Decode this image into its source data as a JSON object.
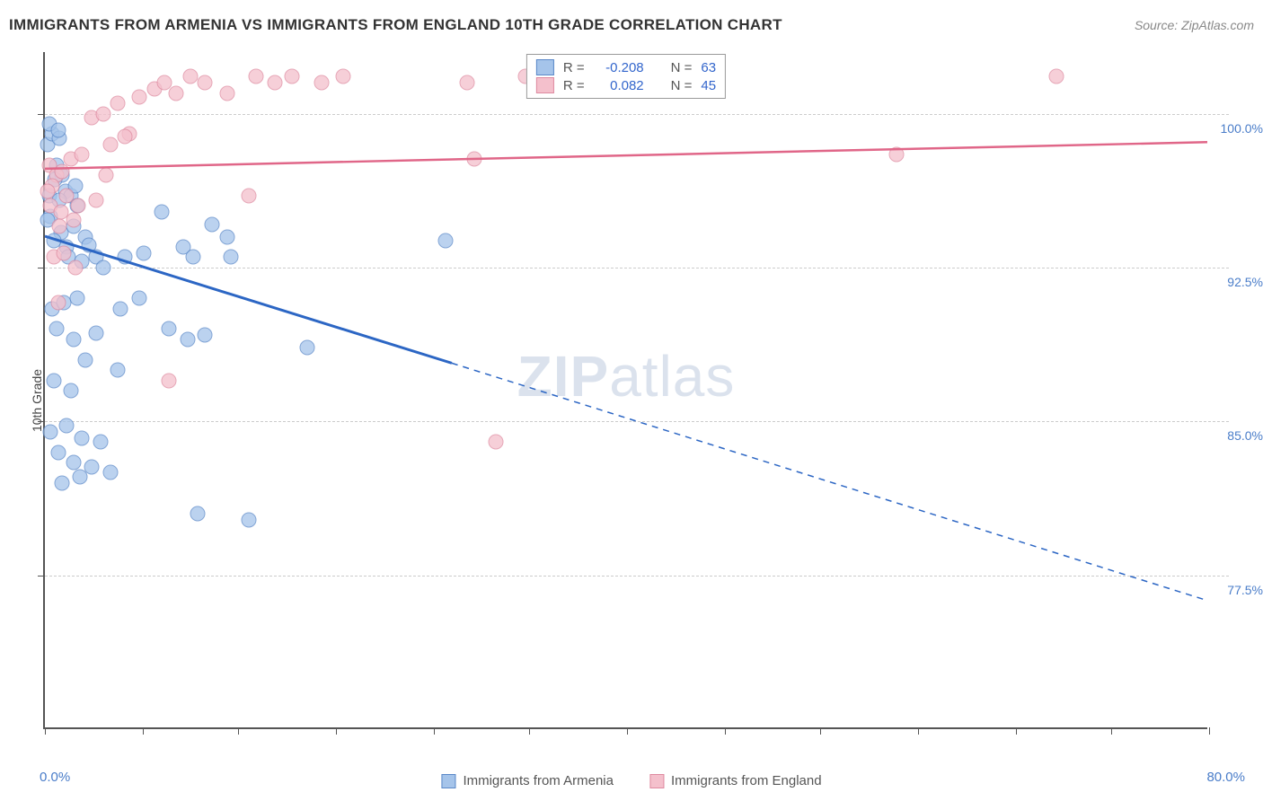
{
  "header": {
    "title": "IMMIGRANTS FROM ARMENIA VS IMMIGRANTS FROM ENGLAND 10TH GRADE CORRELATION CHART",
    "source": "Source: ZipAtlas.com"
  },
  "watermark": {
    "prefix": "ZIP",
    "suffix": "atlas"
  },
  "chart": {
    "type": "scatter",
    "xlim": [
      0,
      80
    ],
    "ylim": [
      70,
      103
    ],
    "x_tick_positions": [
      0,
      6.7,
      13.3,
      20,
      26.7,
      33.3,
      40,
      46.7,
      53.3,
      60,
      66.7,
      73.3,
      80
    ],
    "y_tick_positions": [
      77.5,
      85.0,
      92.5,
      100.0
    ],
    "y_tick_labels": [
      "77.5%",
      "85.0%",
      "92.5%",
      "100.0%"
    ],
    "x_axis_min_label": "0.0%",
    "x_axis_max_label": "80.0%",
    "ylabel": "10th Grade",
    "grid_color": "#cccccc",
    "axis_color": "#555555",
    "background_color": "#ffffff",
    "label_fontsize": 14,
    "tick_label_color": "#4a7dc9",
    "marker_radius": 8.5
  },
  "series": [
    {
      "name": "Immigrants from Armenia",
      "fill_color": "#a5c4ea",
      "stroke_color": "#5a88c8",
      "trend_color": "#2c66c4",
      "trend_width": 3,
      "R": "-0.208",
      "N": "63",
      "trend": {
        "x0": 0,
        "y0": 94.0,
        "x_solid_end": 28,
        "y_solid_end": 87.8,
        "x1": 80,
        "y1": 76.2
      },
      "points": [
        [
          0.2,
          98.5
        ],
        [
          0.5,
          99.0
        ],
        [
          0.8,
          97.5
        ],
        [
          1.0,
          98.8
        ],
        [
          1.2,
          97.0
        ],
        [
          0.3,
          96.0
        ],
        [
          0.7,
          96.8
        ],
        [
          1.4,
          96.2
        ],
        [
          1.8,
          96.0
        ],
        [
          2.2,
          95.5
        ],
        [
          0.4,
          95.0
        ],
        [
          1.1,
          94.2
        ],
        [
          2.0,
          94.5
        ],
        [
          2.8,
          94.0
        ],
        [
          0.6,
          93.8
        ],
        [
          1.5,
          93.5
        ],
        [
          3.0,
          93.6
        ],
        [
          0.3,
          99.5
        ],
        [
          0.9,
          99.2
        ],
        [
          1.6,
          93.0
        ],
        [
          2.5,
          92.8
        ],
        [
          3.5,
          93.0
        ],
        [
          4.0,
          92.5
        ],
        [
          5.5,
          93.0
        ],
        [
          6.8,
          93.2
        ],
        [
          8.0,
          95.2
        ],
        [
          9.5,
          93.5
        ],
        [
          10.2,
          93.0
        ],
        [
          11.5,
          94.6
        ],
        [
          12.5,
          94.0
        ],
        [
          12.8,
          93.0
        ],
        [
          0.5,
          90.5
        ],
        [
          1.3,
          90.8
        ],
        [
          2.2,
          91.0
        ],
        [
          5.2,
          90.5
        ],
        [
          6.5,
          91.0
        ],
        [
          0.8,
          89.5
        ],
        [
          2.0,
          89.0
        ],
        [
          3.5,
          89.3
        ],
        [
          8.5,
          89.5
        ],
        [
          9.8,
          89.0
        ],
        [
          11.0,
          89.2
        ],
        [
          18.0,
          88.6
        ],
        [
          27.5,
          93.8
        ],
        [
          0.6,
          87.0
        ],
        [
          1.8,
          86.5
        ],
        [
          2.8,
          88.0
        ],
        [
          5.0,
          87.5
        ],
        [
          0.4,
          84.5
        ],
        [
          1.5,
          84.8
        ],
        [
          2.5,
          84.2
        ],
        [
          3.8,
          84.0
        ],
        [
          0.9,
          83.5
        ],
        [
          2.0,
          83.0
        ],
        [
          3.2,
          82.8
        ],
        [
          4.5,
          82.5
        ],
        [
          1.2,
          82.0
        ],
        [
          2.4,
          82.3
        ],
        [
          10.5,
          80.5
        ],
        [
          14.0,
          80.2
        ],
        [
          0.2,
          94.8
        ],
        [
          1.0,
          95.8
        ],
        [
          2.1,
          96.5
        ]
      ]
    },
    {
      "name": "Immigrants from England",
      "fill_color": "#f4c0cc",
      "stroke_color": "#de8aa0",
      "trend_color": "#e06688",
      "trend_width": 2.5,
      "R": " 0.082",
      "N": "45",
      "trend": {
        "x0": 0,
        "y0": 97.3,
        "x_solid_end": 80,
        "y_solid_end": 98.6,
        "x1": 80,
        "y1": 98.6
      },
      "points": [
        [
          0.3,
          97.5
        ],
        [
          0.8,
          97.0
        ],
        [
          1.2,
          97.2
        ],
        [
          1.8,
          97.8
        ],
        [
          2.5,
          98.0
        ],
        [
          3.2,
          99.8
        ],
        [
          4.0,
          100.0
        ],
        [
          5.0,
          100.5
        ],
        [
          5.8,
          99.0
        ],
        [
          6.5,
          100.8
        ],
        [
          7.5,
          101.2
        ],
        [
          8.2,
          101.5
        ],
        [
          9.0,
          101.0
        ],
        [
          10.0,
          101.8
        ],
        [
          11.0,
          101.5
        ],
        [
          12.5,
          101.0
        ],
        [
          14.5,
          101.8
        ],
        [
          15.8,
          101.5
        ],
        [
          17.0,
          101.8
        ],
        [
          19.0,
          101.5
        ],
        [
          20.5,
          101.8
        ],
        [
          14.0,
          96.0
        ],
        [
          0.5,
          96.5
        ],
        [
          1.5,
          96.0
        ],
        [
          2.3,
          95.5
        ],
        [
          3.5,
          95.8
        ],
        [
          0.4,
          95.5
        ],
        [
          1.0,
          94.5
        ],
        [
          2.0,
          94.8
        ],
        [
          0.6,
          93.0
        ],
        [
          1.3,
          93.2
        ],
        [
          2.1,
          92.5
        ],
        [
          0.9,
          90.8
        ],
        [
          8.5,
          87.0
        ],
        [
          31.0,
          84.0
        ],
        [
          29.0,
          101.5
        ],
        [
          29.5,
          97.8
        ],
        [
          33.0,
          101.8
        ],
        [
          58.5,
          98.0
        ],
        [
          69.5,
          101.8
        ],
        [
          0.2,
          96.2
        ],
        [
          4.5,
          98.5
        ],
        [
          5.5,
          98.9
        ],
        [
          1.1,
          95.2
        ],
        [
          4.2,
          97.0
        ]
      ]
    }
  ],
  "top_legend": {
    "rows": [
      {
        "series_index": 0,
        "r_label": "R =",
        "n_label": "N ="
      },
      {
        "series_index": 1,
        "r_label": "R =",
        "n_label": "N ="
      }
    ]
  },
  "bottom_legend": {
    "items": [
      {
        "series_index": 0
      },
      {
        "series_index": 1
      }
    ]
  }
}
